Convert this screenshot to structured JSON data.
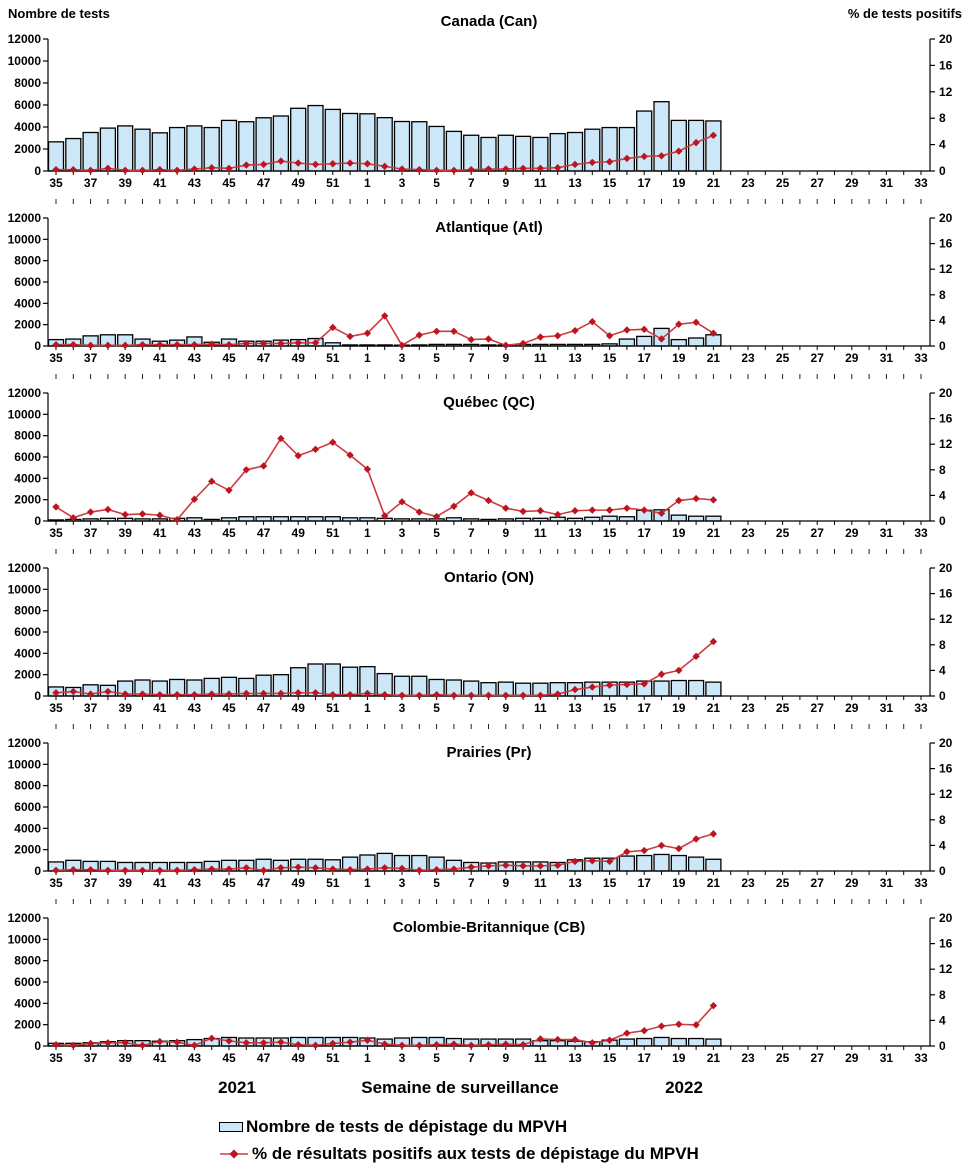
{
  "header": {
    "left_axis_label": "Nombre de tests",
    "right_axis_label": "% de tests positifs"
  },
  "footer": {
    "year_left": "2021",
    "x_axis_title": "Semaine de surveillance",
    "year_right": "2022"
  },
  "legend": {
    "items": [
      {
        "swatch": "bar-swatch",
        "label": "Nombre de tests de dépistage du MPVH"
      },
      {
        "swatch": "line-diamond-swatch",
        "label": "% de résultats positifs aux tests de dépistage du MPVH"
      }
    ]
  },
  "colors": {
    "bar_fill": "#CBE7F8",
    "bar_stroke": "#000000",
    "line": "#CC3B40",
    "marker": "#BE1420",
    "axis": "#000000"
  },
  "axis": {
    "x_categories": [
      "35",
      "36",
      "37",
      "38",
      "39",
      "40",
      "41",
      "42",
      "43",
      "44",
      "45",
      "46",
      "47",
      "48",
      "49",
      "50",
      "51",
      "52",
      "1",
      "2",
      "3",
      "4",
      "5",
      "6",
      "7",
      "8",
      "9",
      "10",
      "11",
      "12",
      "13",
      "14",
      "15",
      "16",
      "17",
      "18",
      "19",
      "20",
      "21",
      "22",
      "23",
      "24",
      "25",
      "26",
      "27",
      "28",
      "29",
      "30",
      "31",
      "32",
      "33"
    ],
    "x_labeled_ticks": [
      "35",
      "37",
      "39",
      "41",
      "43",
      "45",
      "47",
      "49",
      "51",
      "1",
      "3",
      "5",
      "7",
      "9",
      "11",
      "13",
      "15",
      "17",
      "19",
      "21",
      "23",
      "25",
      "27",
      "29",
      "31",
      "33"
    ],
    "left_ticks": [
      0,
      2000,
      4000,
      6000,
      8000,
      10000,
      12000
    ],
    "right_ticks": [
      0,
      4,
      8,
      12,
      16,
      20
    ],
    "left_max": 12000,
    "right_max": 20
  },
  "chart_data": [
    {
      "type": "bar+line",
      "title": "Canada (Can)",
      "x_weeks": "2021-W35 à 2022-W21 (axe affiché jusqu'à W33)",
      "ylim_left": [
        0,
        12000
      ],
      "ylim_right": [
        0,
        20
      ],
      "series": [
        {
          "name": "Nombre de tests de dépistage du MPVH",
          "type": "bar",
          "axis": "left",
          "values": [
            2650,
            2950,
            3500,
            3900,
            4100,
            3800,
            3470,
            3950,
            4100,
            3950,
            4600,
            4480,
            4840,
            5000,
            5700,
            5950,
            5600,
            5230,
            5200,
            4850,
            4500,
            4480,
            4050,
            3600,
            3250,
            3050,
            3250,
            3150,
            3050,
            3400,
            3500,
            3800,
            3950,
            3950,
            5450,
            6300,
            4600,
            4600,
            4550
          ]
        },
        {
          "name": "% de résultats positifs aux tests de dépistage du MPVH",
          "type": "line",
          "axis": "right",
          "values": [
            0.2,
            0.2,
            0.1,
            0.4,
            0.1,
            0.1,
            0.2,
            0.1,
            0.3,
            0.5,
            0.4,
            0.9,
            1.0,
            1.5,
            1.2,
            1.0,
            1.1,
            1.2,
            1.1,
            0.7,
            0.3,
            0.2,
            0.1,
            0.1,
            0.2,
            0.3,
            0.3,
            0.4,
            0.4,
            0.5,
            1.0,
            1.3,
            1.4,
            1.9,
            2.2,
            2.3,
            3.0,
            4.3,
            5.4
          ]
        }
      ]
    },
    {
      "type": "bar+line",
      "title": "Atlantique (Atl)",
      "ylim_left": [
        0,
        12000
      ],
      "ylim_right": [
        0,
        20
      ],
      "series": [
        {
          "name": "Nombre de tests de dépistage du MPVH",
          "type": "bar",
          "axis": "left",
          "values": [
            600,
            650,
            950,
            1050,
            1050,
            650,
            450,
            550,
            850,
            350,
            650,
            450,
            450,
            550,
            600,
            700,
            300,
            100,
            100,
            100,
            80,
            100,
            150,
            150,
            150,
            100,
            100,
            150,
            150,
            150,
            150,
            150,
            200,
            650,
            900,
            1650,
            600,
            750,
            1050
          ]
        },
        {
          "name": "% de résultats positifs aux tests de dépistage du MPVH",
          "type": "line",
          "axis": "right",
          "values": [
            0.2,
            0.2,
            0.1,
            0.1,
            0.1,
            0.2,
            0.2,
            0.2,
            0.2,
            0.3,
            0.2,
            0.4,
            0.4,
            0.4,
            0.5,
            0.5,
            2.9,
            1.5,
            2.0,
            4.7,
            0.1,
            1.7,
            2.3,
            2.3,
            1.0,
            1.1,
            0.1,
            0.4,
            1.4,
            1.6,
            2.4,
            3.8,
            1.6,
            2.5,
            2.6,
            1.1,
            3.4,
            3.7,
            2.0
          ]
        }
      ]
    },
    {
      "type": "bar+line",
      "title": "Québec (QC)",
      "ylim_left": [
        0,
        12000
      ],
      "ylim_right": [
        0,
        20
      ],
      "series": [
        {
          "name": "Nombre de tests de dépistage du MPVH",
          "type": "bar",
          "axis": "left",
          "values": [
            100,
            150,
            200,
            250,
            250,
            200,
            200,
            250,
            300,
            150,
            300,
            400,
            400,
            400,
            400,
            400,
            400,
            300,
            300,
            250,
            200,
            200,
            200,
            300,
            200,
            150,
            200,
            250,
            250,
            350,
            250,
            350,
            450,
            400,
            1000,
            1050,
            550,
            450,
            450
          ]
        },
        {
          "name": "% de résultats positifs aux tests de dépistage du MPVH",
          "type": "line",
          "axis": "right",
          "values": [
            2.2,
            0.5,
            1.4,
            1.8,
            1.0,
            1.1,
            0.9,
            0.2,
            3.4,
            6.2,
            4.8,
            8.0,
            8.6,
            12.9,
            10.2,
            11.2,
            12.3,
            10.3,
            8.1,
            0.8,
            3.0,
            1.4,
            0.7,
            2.3,
            4.4,
            3.2,
            2.0,
            1.5,
            1.6,
            1.0,
            1.6,
            1.7,
            1.7,
            2.0,
            1.7,
            1.2,
            3.2,
            3.5,
            3.3
          ]
        }
      ]
    },
    {
      "type": "bar+line",
      "title": "Ontario (ON)",
      "ylim_left": [
        0,
        12000
      ],
      "ylim_right": [
        0,
        20
      ],
      "series": [
        {
          "name": "Nombre de tests de dépistage du MPVH",
          "type": "bar",
          "axis": "left",
          "values": [
            850,
            800,
            1050,
            1000,
            1400,
            1500,
            1400,
            1550,
            1500,
            1650,
            1750,
            1650,
            1950,
            2000,
            2650,
            3000,
            3000,
            2700,
            2750,
            2100,
            1850,
            1850,
            1550,
            1500,
            1400,
            1250,
            1300,
            1200,
            1200,
            1250,
            1250,
            1300,
            1300,
            1300,
            1400,
            1400,
            1450,
            1450,
            1300
          ]
        },
        {
          "name": "% de résultats positifs aux tests de dépistage du MPVH",
          "type": "line",
          "axis": "right",
          "values": [
            0.5,
            0.7,
            0.3,
            0.7,
            0.3,
            0.3,
            0.2,
            0.2,
            0.2,
            0.3,
            0.3,
            0.4,
            0.4,
            0.4,
            0.5,
            0.5,
            0.2,
            0.2,
            0.4,
            0.2,
            0.1,
            0.1,
            0.2,
            0.1,
            0.1,
            0.1,
            0.1,
            0.1,
            0.1,
            0.3,
            1.0,
            1.4,
            1.7,
            1.8,
            1.9,
            3.4,
            4.0,
            6.2,
            8.5
          ]
        }
      ]
    },
    {
      "type": "bar+line",
      "title": "Prairies (Pr)",
      "ylim_left": [
        0,
        12000
      ],
      "ylim_right": [
        0,
        20
      ],
      "series": [
        {
          "name": "Nombre de tests de dépistage du MPVH",
          "type": "bar",
          "axis": "left",
          "values": [
            850,
            1000,
            900,
            900,
            800,
            800,
            800,
            800,
            800,
            900,
            1000,
            1000,
            1100,
            1000,
            1100,
            1100,
            1050,
            1300,
            1500,
            1650,
            1450,
            1450,
            1300,
            1000,
            800,
            750,
            850,
            850,
            850,
            800,
            1050,
            1200,
            1200,
            1400,
            1450,
            1550,
            1450,
            1300,
            1100
          ]
        },
        {
          "name": "% de résultats positifs aux tests de dépistage du MPVH",
          "type": "line",
          "axis": "right",
          "values": [
            0.1,
            0.2,
            0.2,
            0.1,
            0.1,
            0.1,
            0.1,
            0.1,
            0.2,
            0.3,
            0.3,
            0.5,
            0.1,
            0.5,
            0.6,
            0.5,
            0.3,
            0.2,
            0.3,
            0.5,
            0.4,
            0.1,
            0.2,
            0.3,
            0.6,
            0.8,
            0.9,
            0.8,
            0.8,
            0.9,
            1.5,
            1.6,
            1.5,
            3.0,
            3.2,
            4.0,
            3.5,
            5.0,
            5.8
          ]
        }
      ]
    },
    {
      "type": "bar+line",
      "title": "Colombie-Britannique (CB)",
      "ylim_left": [
        0,
        12000
      ],
      "ylim_right": [
        0,
        20
      ],
      "series": [
        {
          "name": "Nombre de tests de dépistage du MPVH",
          "type": "bar",
          "axis": "left",
          "values": [
            250,
            250,
            300,
            400,
            500,
            500,
            450,
            500,
            600,
            700,
            800,
            750,
            750,
            750,
            800,
            800,
            800,
            800,
            750,
            650,
            750,
            800,
            800,
            700,
            650,
            650,
            650,
            650,
            500,
            500,
            450,
            400,
            550,
            650,
            700,
            800,
            700,
            700,
            650
          ]
        },
        {
          "name": "% de résultats positifs aux tests de dépistage du MPVH",
          "type": "line",
          "axis": "right",
          "values": [
            0.2,
            0.1,
            0.4,
            0.5,
            0.5,
            0.1,
            0.7,
            0.6,
            0.1,
            1.2,
            0.8,
            0.5,
            0.5,
            0.6,
            0.2,
            0.1,
            0.4,
            0.6,
            0.9,
            0.3,
            0.1,
            0.1,
            0.2,
            0.3,
            0.1,
            0.2,
            0.3,
            0.2,
            1.1,
            1.0,
            1.0,
            0.5,
            0.9,
            2.0,
            2.4,
            3.1,
            3.4,
            3.3,
            6.3
          ]
        }
      ]
    }
  ]
}
